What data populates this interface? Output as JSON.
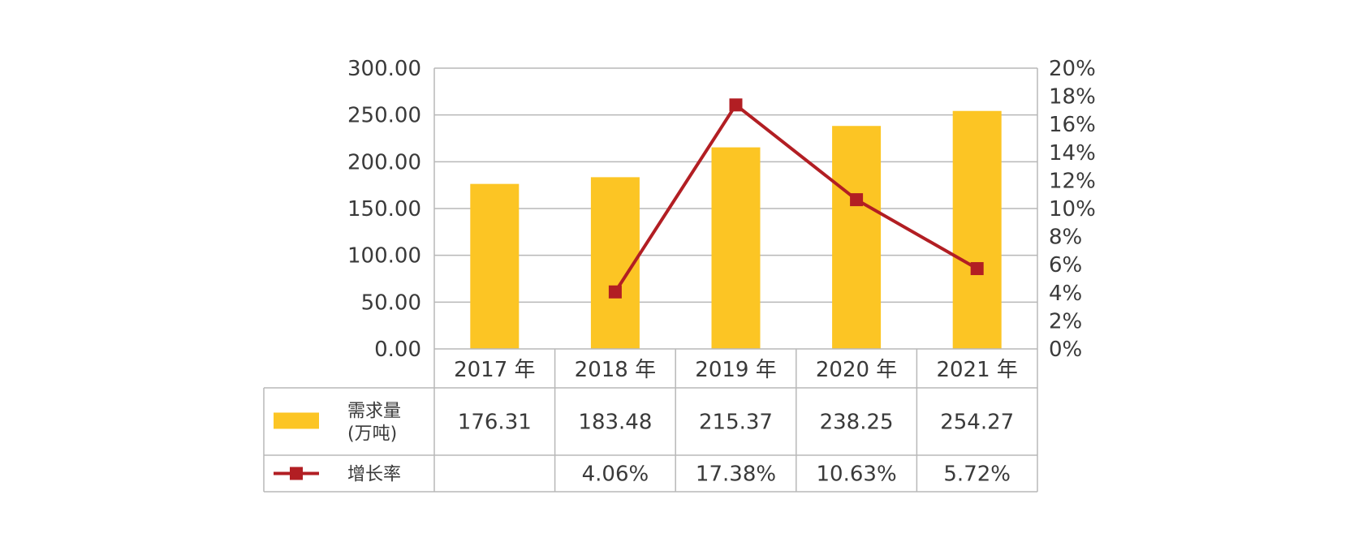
{
  "chart_data": {
    "type": "bar",
    "categories": [
      "2017 年",
      "2018 年",
      "2019 年",
      "2020 年",
      "2021 年"
    ],
    "series": [
      {
        "name_lines": [
          "需求量",
          "(万吨)"
        ],
        "type": "bar",
        "axis": "left",
        "color": "#FCC524",
        "values": [
          176.31,
          183.48,
          215.37,
          238.25,
          254.27
        ],
        "value_labels": [
          "176.31",
          "183.48",
          "215.37",
          "238.25",
          "254.27"
        ]
      },
      {
        "name": "增长率",
        "type": "line",
        "axis": "right",
        "color": "#B21E23",
        "marker": "square",
        "values": [
          null,
          4.06,
          17.38,
          10.63,
          5.72
        ],
        "value_labels": [
          "",
          "4.06%",
          "17.38%",
          "10.63%",
          "5.72%"
        ]
      }
    ],
    "y_left": {
      "ylim": [
        0,
        300
      ],
      "ticks": [
        "0.00",
        "50.00",
        "100.00",
        "150.00",
        "200.00",
        "250.00",
        "300.00"
      ]
    },
    "y_right": {
      "ylim": [
        0,
        20
      ],
      "ticks": [
        "0%",
        "2%",
        "4%",
        "6%",
        "8%",
        "10%",
        "12%",
        "14%",
        "16%",
        "18%",
        "20%"
      ]
    },
    "grid": true,
    "legend": "data-table-below"
  }
}
